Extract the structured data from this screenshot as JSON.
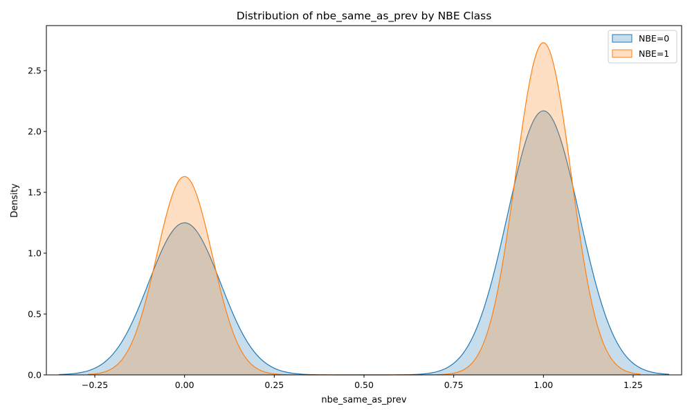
{
  "chart_data": {
    "type": "area",
    "title": "Distribution of nbe_same_as_prev by NBE Class",
    "xlabel": "nbe_same_as_prev",
    "ylabel": "Density",
    "xlim": [
      -0.385,
      1.385
    ],
    "ylim": [
      0,
      2.87
    ],
    "x_ticks": [
      -0.25,
      0.0,
      0.25,
      0.5,
      0.75,
      1.0,
      1.25
    ],
    "x_tick_labels": [
      "−0.25",
      "0.00",
      "0.25",
      "0.50",
      "0.75",
      "1.00",
      "1.25"
    ],
    "y_ticks": [
      0.0,
      0.5,
      1.0,
      1.5,
      2.0,
      2.5
    ],
    "y_tick_labels": [
      "0.0",
      "0.5",
      "1.0",
      "1.5",
      "2.0",
      "2.5"
    ],
    "grid": false,
    "legend_position": "top-right",
    "series": [
      {
        "name": "NBE=0",
        "color": "#1f77b4",
        "fill_opacity": 0.25,
        "x_range": [
          -0.35,
          1.35
        ],
        "peaks": [
          {
            "x": 0.0,
            "density": 1.25,
            "sd": 0.1
          },
          {
            "x": 1.0,
            "density": 2.17,
            "sd": 0.1
          }
        ]
      },
      {
        "name": "NBE=1",
        "color": "#ff7f0e",
        "fill_opacity": 0.25,
        "x_range": [
          -0.27,
          1.27
        ],
        "peaks": [
          {
            "x": 0.0,
            "density": 1.63,
            "sd": 0.077
          },
          {
            "x": 1.0,
            "density": 2.73,
            "sd": 0.077
          }
        ]
      }
    ]
  }
}
